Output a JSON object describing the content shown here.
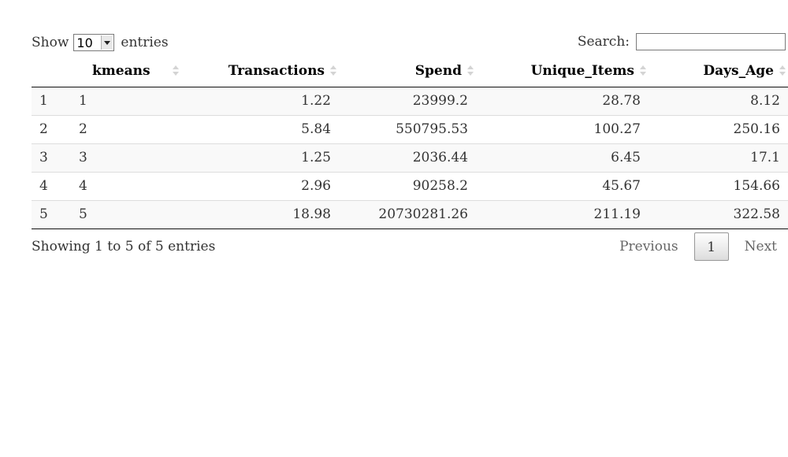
{
  "controls": {
    "show_label": "Show",
    "length_value": "10",
    "entries_label": "entries",
    "search_label": "Search:",
    "search_value": ""
  },
  "table": {
    "headers": [
      "",
      "kmeans",
      "Transactions",
      "Spend",
      "Unique_Items",
      "Days_Age"
    ],
    "rows": [
      [
        "1",
        "1",
        "1.22",
        "23999.2",
        "28.78",
        "8.12"
      ],
      [
        "2",
        "2",
        "5.84",
        "550795.53",
        "100.27",
        "250.16"
      ],
      [
        "3",
        "3",
        "1.25",
        "2036.44",
        "6.45",
        "17.1"
      ],
      [
        "4",
        "4",
        "2.96",
        "90258.2",
        "45.67",
        "154.66"
      ],
      [
        "5",
        "5",
        "18.98",
        "20730281.26",
        "211.19",
        "322.58"
      ]
    ]
  },
  "footer": {
    "info": "Showing 1 to 5 of 5 entries",
    "previous_label": "Previous",
    "current_page": "1",
    "next_label": "Next"
  }
}
